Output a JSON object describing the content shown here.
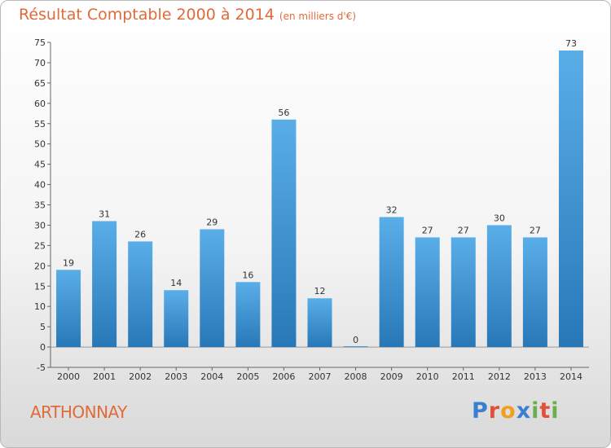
{
  "title": "Résultat Comptable 2000 à 2014",
  "subtitle": "(en milliers d'€)",
  "commune": "ARTHONNAY",
  "logo": {
    "text": "Proxiti",
    "colors": [
      "#3a7fd0",
      "#e0503a",
      "#f0a020",
      "#3a7fd0",
      "#6ab04a",
      "#e0503a",
      "#6ab04a"
    ]
  },
  "colors": {
    "title": "#e06a3a",
    "bar_top": "#5aaee8",
    "bar_bottom": "#2878b8"
  },
  "chart_data": {
    "type": "bar",
    "title": "Résultat Comptable 2000 à 2014",
    "xlabel": "",
    "ylabel": "",
    "categories": [
      "2000",
      "2001",
      "2002",
      "2003",
      "2004",
      "2005",
      "2006",
      "2007",
      "2008",
      "2009",
      "2010",
      "2011",
      "2012",
      "2013",
      "2014"
    ],
    "values": [
      19,
      31,
      26,
      14,
      29,
      16,
      56,
      12,
      0,
      32,
      27,
      27,
      30,
      27,
      73
    ],
    "ylim": [
      -5,
      75
    ],
    "yticks": [
      -5,
      0,
      5,
      10,
      15,
      20,
      25,
      30,
      35,
      40,
      45,
      50,
      55,
      60,
      65,
      70,
      75
    ],
    "grid": false
  }
}
